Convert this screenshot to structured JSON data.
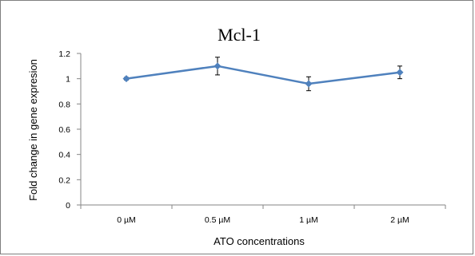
{
  "chart_data": {
    "type": "line",
    "title": "Mcl-1",
    "xlabel": "ATO concentrations",
    "ylabel": "Fold change in gene expresion",
    "categories": [
      "0 µM",
      "0.5 µM",
      "1 µM",
      "2 µM"
    ],
    "series": [
      {
        "values": [
          1.0,
          1.1,
          0.96,
          1.05
        ],
        "errors": [
          0.01,
          0.07,
          0.055,
          0.05
        ]
      }
    ],
    "ylim": [
      0,
      1.2
    ],
    "yticks": [
      "0",
      "0.2",
      "0.4",
      "0.6",
      "0.8",
      "1",
      "1.2"
    ],
    "grid": false,
    "legend": "none",
    "colors": {
      "line": "#4f81bd",
      "marker": "#4f81bd",
      "errorbar": "#000000",
      "axis": "#868686"
    }
  }
}
